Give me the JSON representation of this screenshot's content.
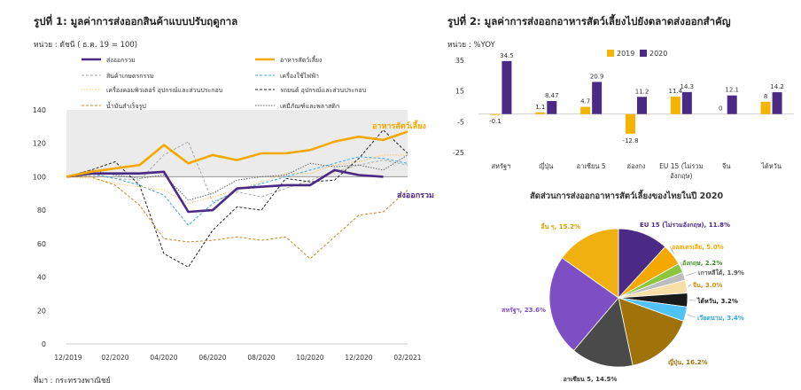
{
  "fig1": {
    "title": "รูปที่ 1: มูลค่าการส่งออกสินค้าแบบปรับฤดูกาล",
    "unit": "หน่วย : ดัชนี ( ธ.ค. 19 = 100)",
    "source": "ที่มา : กระทรวงพาณิชย์",
    "end_label_food": "อาหารสัตว์เลี้ยง",
    "end_label_exports": "ส่งออกรวม"
  },
  "fig2": {
    "title": "รูปที่ 2: มูลค่าการส่งออกอาหารสัตว์เลี้ยงไปยังตลาดส่งออกสำคัญ",
    "unit": "หน่วย : %YOY"
  },
  "fig3": {
    "title": "สัดส่วนการส่งออกอาหารสัตว์เลี้ยงของไทยในปี 2020"
  },
  "chart_data": [
    {
      "type": "line",
      "title": "รูปที่ 1: มูลค่าการส่งออกสินค้าแบบปรับฤดูกาล",
      "ylabel": "ดัชนี ( ธ.ค. 19 = 100)",
      "ylim": [
        0,
        140
      ],
      "yticks": [
        0,
        20,
        40,
        60,
        80,
        100,
        120,
        140
      ],
      "x": [
        "12/2019",
        "01/2020",
        "02/2020",
        "03/2020",
        "04/2020",
        "05/2020",
        "06/2020",
        "07/2020",
        "08/2020",
        "09/2020",
        "10/2020",
        "11/2020",
        "12/2020",
        "01/2021",
        "02/2021"
      ],
      "xticks": [
        "12/2019",
        "02/2020",
        "04/2020",
        "06/2020",
        "08/2020",
        "10/2020",
        "12/2020",
        "02/2021"
      ],
      "series": [
        {
          "name": "ส่งออกรวม",
          "color": "#4b2a86",
          "style": "solid-thick",
          "values": [
            100,
            102,
            102,
            102,
            103,
            79,
            80,
            93,
            94,
            95,
            95,
            104,
            101,
            100,
            null
          ]
        },
        {
          "name": "อาหารสัตว์เลี้ยง",
          "color": "#f5a800",
          "style": "solid-thick",
          "values": [
            100,
            103,
            105,
            107,
            119,
            108,
            113,
            110,
            114,
            114,
            116,
            121,
            124,
            122,
            127
          ]
        },
        {
          "name": "สินค้าเกษตรกรรม",
          "color": "#aaaaaa",
          "style": "dash",
          "values": [
            100,
            101,
            99,
            98,
            113,
            121,
            85,
            91,
            88,
            93,
            98,
            103,
            107,
            110,
            107
          ]
        },
        {
          "name": "เครื่องใช้ไฟฟ้า",
          "color": "#3fa9e0",
          "style": "dash",
          "values": [
            100,
            102,
            99,
            95,
            89,
            71,
            84,
            92,
            96,
            100,
            104,
            108,
            112,
            111,
            108
          ]
        },
        {
          "name": "เครื่องคอมพิวเตอร์ อุปกรณ์และส่วนประกอบ",
          "color": "#f7c86a",
          "style": "dot",
          "values": [
            100,
            99,
            96,
            94,
            92,
            84,
            88,
            92,
            97,
            102,
            102,
            107,
            109,
            113,
            113
          ]
        },
        {
          "name": "รถยนต์ อุปกรณ์และส่วนประกอบ",
          "color": "#222222",
          "style": "dash",
          "values": [
            100,
            104,
            109,
            95,
            54,
            46,
            68,
            82,
            80,
            99,
            97,
            98,
            111,
            128,
            114
          ]
        },
        {
          "name": "น้ำมันสำเร็จรูป",
          "color": "#c8872a",
          "style": "dash",
          "values": [
            100,
            100,
            95,
            83,
            63,
            61,
            62,
            64,
            62,
            64,
            51,
            64,
            77,
            79,
            92
          ]
        },
        {
          "name": "เคมีภัณฑ์และพลาสติก",
          "color": "#666666",
          "style": "dot",
          "values": [
            100,
            104,
            101,
            99,
            101,
            86,
            90,
            98,
            100,
            101,
            108,
            106,
            107,
            104,
            113
          ]
        }
      ]
    },
    {
      "type": "bar",
      "title": "รูปที่ 2: มูลค่าการส่งออกอาหารสัตว์เลี้ยงไปยังตลาดส่งออกสำคัญ",
      "ylabel": "%YOY",
      "ylim": [
        -25,
        35
      ],
      "yticks": [
        35,
        15,
        -5,
        -25
      ],
      "categories": [
        "สหรัฐฯ",
        "ญี่ปุ่น",
        "อาเซียน 5",
        "ฮ่องกง",
        "EU 15 (ไม่รวม\nอังกฤษ)",
        "จีน",
        "ไต้หวัน"
      ],
      "series": [
        {
          "name": "2019",
          "color": "#f5b400",
          "values": [
            -0.1,
            1.1,
            4.7,
            -12.8,
            11.4,
            0,
            8
          ]
        },
        {
          "name": "2020",
          "color": "#4b2a86",
          "values": [
            34.5,
            8.47,
            20.9,
            11.2,
            14.3,
            12.1,
            14.2
          ]
        }
      ],
      "labels_2019": [
        "-0.1",
        "1.1",
        "4.7",
        "-12.8",
        "11.4",
        "0",
        "8"
      ],
      "labels_2020": [
        "34.5",
        "8.47",
        "20.9",
        "11.2",
        "14.3",
        "12.1",
        "14.2"
      ]
    },
    {
      "type": "pie",
      "title": "สัดส่วนการส่งออกอาหารสัตว์เลี้ยงของไทยในปี 2020",
      "slices": [
        {
          "label": "EU 15 (ไม่รวมอังกฤษ)",
          "value": 11.8,
          "text": "EU 15 (ไม่รวมอังกฤษ), 11.8%",
          "color": "#4b2a86"
        },
        {
          "label": "ออสเตรเลีย",
          "value": 5.0,
          "text": "ออสเตรเลีย, 5.0%",
          "color": "#f5a800"
        },
        {
          "label": "อังกฤษ",
          "value": 2.2,
          "text": "อังกฤษ, 2.2%",
          "color": "#8cc63f"
        },
        {
          "label": "เกาหลีใต้",
          "value": 1.9,
          "text": "เกาหลีใต้, 1.9%",
          "color": "#bdbdbd"
        },
        {
          "label": "จีน",
          "value": 3.0,
          "text": "จีน, 3.0%",
          "color": "#f6e0a8"
        },
        {
          "label": "ไต้หวัน",
          "value": 3.2,
          "text": "ไต้หวัน, 3.2%",
          "color": "#1a1a1a"
        },
        {
          "label": "เวียดนาม",
          "value": 3.4,
          "text": "เวียดนาม, 3.4%",
          "color": "#4fc3f7"
        },
        {
          "label": "ญี่ปุ่น",
          "value": 16.2,
          "text": "ญี่ปุ่น, 16.2%",
          "color": "#a0720a"
        },
        {
          "label": "อาเซียน 5",
          "value": 14.5,
          "text": "อาเซียน 5, 14.5%",
          "color": "#4a4a4a"
        },
        {
          "label": "สหรัฐฯ",
          "value": 23.6,
          "text": "สหรัฐฯ, 23.6%",
          "color": "#7e4fc4"
        },
        {
          "label": "อื่น ๆ",
          "value": 15.2,
          "text": "อื่น ๆ, 15.2%",
          "color": "#f0b010"
        }
      ]
    }
  ]
}
